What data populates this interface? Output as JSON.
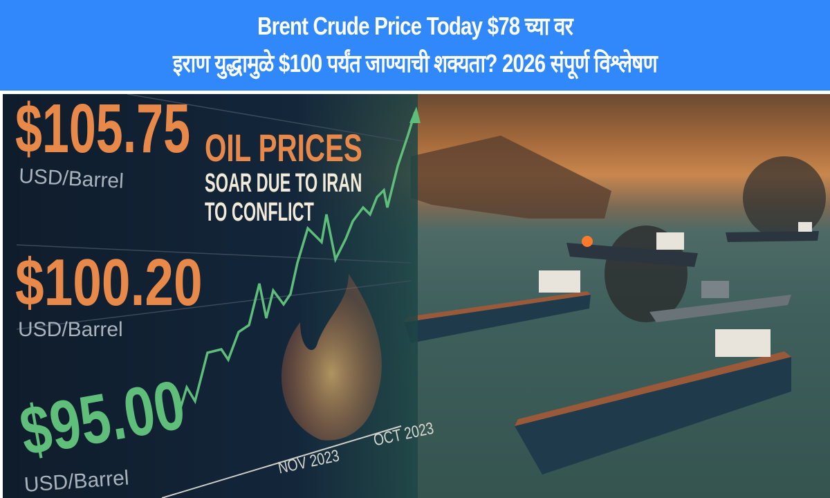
{
  "header": {
    "line1": "Brent Crude Price Today $78 च्या वर",
    "line2": "इराण युद्धामुळे $100 पर्यंत जाण्याची शक्यता? 2026 संपूर्ण विश्लेषण",
    "background_color": "#3088fb"
  },
  "graphic": {
    "price_high": "$105.75",
    "price_mid": "$100.20",
    "price_low": "$95.00",
    "unit": "USD/Barrel",
    "headline_1": "OIL PRICES",
    "headline_2": "SOAR DUE TO IRAN",
    "headline_3": "TO CONFLICT",
    "x_label_1": "NOV 2023",
    "x_label_2": "OCT 2023",
    "accent_orange": "#e8894a",
    "accent_green": "#5fbf7a"
  }
}
